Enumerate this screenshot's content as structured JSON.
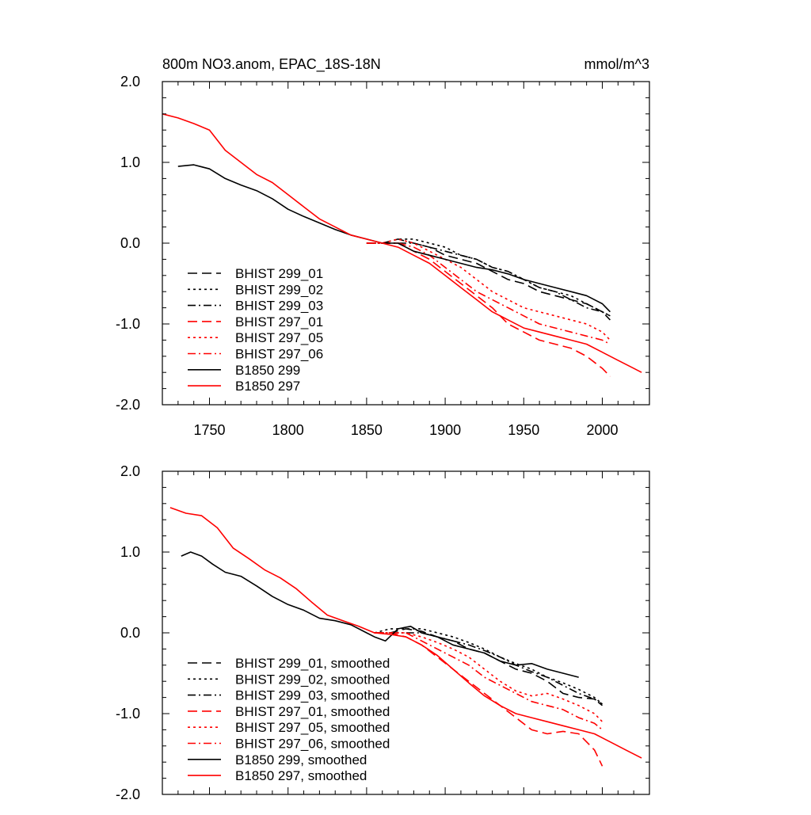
{
  "chart_data": [
    {
      "type": "line",
      "title": "800m NO3.anom, EPAC_18S-18N",
      "units": "mmol/m^3",
      "xlim": [
        1720,
        2030
      ],
      "ylim": [
        -2.0,
        2.0
      ],
      "x_ticks": [
        1750,
        1800,
        1850,
        1900,
        1950,
        2000
      ],
      "y_ticks": [
        "2.0",
        "1.0",
        "0.0",
        "-1.0",
        "-2.0"
      ],
      "show_x_labels": true,
      "grid": false,
      "legend_position": "bottom-left",
      "series": [
        {
          "name": "BHIST 299_01",
          "color": "#000000",
          "dash": "dash",
          "x": [
            1850,
            1860,
            1870,
            1880,
            1890,
            1900,
            1910,
            1920,
            1930,
            1940,
            1950,
            1960,
            1970,
            1980,
            1990,
            2000,
            2005
          ],
          "y": [
            0.0,
            0.0,
            0.05,
            0.0,
            -0.05,
            -0.15,
            -0.2,
            -0.25,
            -0.35,
            -0.45,
            -0.5,
            -0.6,
            -0.65,
            -0.7,
            -0.75,
            -0.85,
            -0.9
          ]
        },
        {
          "name": "BHIST 299_02",
          "color": "#000000",
          "dash": "dot",
          "x": [
            1850,
            1860,
            1870,
            1880,
            1890,
            1900,
            1910,
            1920,
            1930,
            1940,
            1950,
            1960,
            1970,
            1980,
            1990,
            2000,
            2005
          ],
          "y": [
            0.0,
            0.0,
            0.05,
            0.05,
            0.0,
            -0.05,
            -0.15,
            -0.2,
            -0.3,
            -0.35,
            -0.45,
            -0.55,
            -0.6,
            -0.65,
            -0.75,
            -0.85,
            -0.9
          ]
        },
        {
          "name": "BHIST 299_03",
          "color": "#000000",
          "dash": "dashdot",
          "x": [
            1850,
            1860,
            1870,
            1880,
            1890,
            1900,
            1910,
            1920,
            1930,
            1940,
            1950,
            1960,
            1970,
            1980,
            1990,
            2000,
            2005
          ],
          "y": [
            0.0,
            0.0,
            0.0,
            0.0,
            -0.05,
            -0.1,
            -0.15,
            -0.2,
            -0.3,
            -0.35,
            -0.45,
            -0.55,
            -0.6,
            -0.7,
            -0.8,
            -0.85,
            -0.95
          ]
        },
        {
          "name": "BHIST 297_01",
          "color": "#ff0000",
          "dash": "dash",
          "x": [
            1850,
            1860,
            1870,
            1880,
            1890,
            1900,
            1910,
            1920,
            1930,
            1940,
            1950,
            1960,
            1970,
            1980,
            1990,
            2000,
            2005
          ],
          "y": [
            0.0,
            0.0,
            0.0,
            -0.1,
            -0.2,
            -0.35,
            -0.5,
            -0.65,
            -0.8,
            -1.0,
            -1.1,
            -1.2,
            -1.25,
            -1.3,
            -1.4,
            -1.55,
            -1.65
          ]
        },
        {
          "name": "BHIST 297_05",
          "color": "#ff0000",
          "dash": "dot",
          "x": [
            1850,
            1860,
            1870,
            1880,
            1890,
            1900,
            1910,
            1920,
            1930,
            1940,
            1950,
            1960,
            1970,
            1980,
            1990,
            2000,
            2005
          ],
          "y": [
            0.0,
            0.0,
            0.05,
            0.0,
            -0.1,
            -0.2,
            -0.3,
            -0.45,
            -0.6,
            -0.7,
            -0.8,
            -0.85,
            -0.9,
            -0.95,
            -1.0,
            -1.1,
            -1.2
          ]
        },
        {
          "name": "BHIST 297_06",
          "color": "#ff0000",
          "dash": "dashdot",
          "x": [
            1850,
            1860,
            1870,
            1880,
            1890,
            1900,
            1910,
            1920,
            1930,
            1940,
            1950,
            1960,
            1970,
            1980,
            1990,
            2000,
            2005
          ],
          "y": [
            0.0,
            0.0,
            0.0,
            -0.05,
            -0.15,
            -0.3,
            -0.45,
            -0.6,
            -0.7,
            -0.8,
            -0.9,
            -1.0,
            -1.05,
            -1.1,
            -1.15,
            -1.2,
            -1.25
          ]
        },
        {
          "name": "B1850 299",
          "color": "#000000",
          "dash": "solid",
          "x": [
            1730,
            1740,
            1750,
            1760,
            1770,
            1780,
            1790,
            1800,
            1810,
            1820,
            1830,
            1840,
            1850,
            1860,
            1870,
            1880,
            1890,
            1900,
            1910,
            1920,
            1930,
            1940,
            1950,
            1960,
            1970,
            1980,
            1990,
            2000,
            2005
          ],
          "y": [
            0.95,
            0.97,
            0.92,
            0.8,
            0.72,
            0.65,
            0.55,
            0.42,
            0.33,
            0.25,
            0.17,
            0.1,
            0.05,
            0.0,
            0.0,
            -0.1,
            -0.15,
            -0.2,
            -0.25,
            -0.3,
            -0.33,
            -0.38,
            -0.45,
            -0.5,
            -0.55,
            -0.6,
            -0.65,
            -0.75,
            -0.85
          ]
        },
        {
          "name": "B1850 297",
          "color": "#ff0000",
          "dash": "solid",
          "x": [
            1720,
            1730,
            1740,
            1750,
            1760,
            1770,
            1780,
            1790,
            1800,
            1810,
            1820,
            1830,
            1840,
            1850,
            1860,
            1870,
            1880,
            1890,
            1900,
            1910,
            1920,
            1930,
            1940,
            1950,
            1960,
            1970,
            1980,
            1990,
            2000,
            2010,
            2020,
            2025
          ],
          "y": [
            1.6,
            1.55,
            1.48,
            1.4,
            1.15,
            1.0,
            0.85,
            0.75,
            0.6,
            0.45,
            0.3,
            0.2,
            0.1,
            0.05,
            0.0,
            -0.05,
            -0.15,
            -0.25,
            -0.4,
            -0.55,
            -0.7,
            -0.85,
            -0.95,
            -1.05,
            -1.1,
            -1.15,
            -1.2,
            -1.25,
            -1.35,
            -1.45,
            -1.55,
            -1.6
          ]
        }
      ]
    },
    {
      "type": "line",
      "xlim": [
        1720,
        2030
      ],
      "ylim": [
        -2.0,
        2.0
      ],
      "x_ticks": [
        1750,
        1800,
        1850,
        1900,
        1950,
        2000
      ],
      "y_ticks": [
        "2.0",
        "1.0",
        "0.0",
        "-1.0",
        "-2.0"
      ],
      "show_x_labels": false,
      "grid": false,
      "legend_position": "bottom-left",
      "series": [
        {
          "name": "BHIST 299_01, smoothed",
          "color": "#000000",
          "dash": "dash",
          "x": [
            1855,
            1865,
            1875,
            1885,
            1895,
            1905,
            1915,
            1925,
            1935,
            1945,
            1955,
            1965,
            1975,
            1985,
            1995,
            2000
          ],
          "y": [
            0.0,
            0.0,
            0.05,
            0.02,
            -0.05,
            -0.1,
            -0.2,
            -0.25,
            -0.35,
            -0.45,
            -0.5,
            -0.6,
            -0.75,
            -0.8,
            -0.82,
            -0.88
          ]
        },
        {
          "name": "BHIST 299_02, smoothed",
          "color": "#000000",
          "dash": "dot",
          "x": [
            1855,
            1865,
            1875,
            1885,
            1895,
            1905,
            1915,
            1925,
            1935,
            1945,
            1955,
            1965,
            1975,
            1985,
            1995,
            2000
          ],
          "y": [
            0.0,
            0.05,
            0.05,
            0.05,
            0.0,
            -0.05,
            -0.12,
            -0.2,
            -0.3,
            -0.38,
            -0.45,
            -0.55,
            -0.62,
            -0.7,
            -0.8,
            -0.88
          ]
        },
        {
          "name": "BHIST 299_03, smoothed",
          "color": "#000000",
          "dash": "dashdot",
          "x": [
            1855,
            1865,
            1875,
            1885,
            1895,
            1905,
            1915,
            1925,
            1935,
            1945,
            1955,
            1965,
            1975,
            1985,
            1995,
            2000
          ],
          "y": [
            0.0,
            0.0,
            0.0,
            0.0,
            -0.05,
            -0.1,
            -0.15,
            -0.22,
            -0.3,
            -0.4,
            -0.48,
            -0.55,
            -0.65,
            -0.75,
            -0.82,
            -0.9
          ]
        },
        {
          "name": "BHIST 297_01, smoothed",
          "color": "#ff0000",
          "dash": "dash",
          "x": [
            1855,
            1865,
            1875,
            1885,
            1895,
            1905,
            1915,
            1925,
            1935,
            1945,
            1955,
            1965,
            1975,
            1985,
            1995,
            2000
          ],
          "y": [
            0.0,
            0.0,
            -0.05,
            -0.15,
            -0.3,
            -0.45,
            -0.6,
            -0.75,
            -0.9,
            -1.05,
            -1.2,
            -1.25,
            -1.22,
            -1.25,
            -1.45,
            -1.65
          ]
        },
        {
          "name": "BHIST 297_05, smoothed",
          "color": "#ff0000",
          "dash": "dot",
          "x": [
            1855,
            1865,
            1875,
            1885,
            1895,
            1905,
            1915,
            1925,
            1935,
            1945,
            1955,
            1965,
            1975,
            1985,
            1995,
            2000
          ],
          "y": [
            0.0,
            0.0,
            0.0,
            -0.05,
            -0.12,
            -0.2,
            -0.3,
            -0.45,
            -0.6,
            -0.72,
            -0.78,
            -0.75,
            -0.82,
            -0.9,
            -1.0,
            -1.1
          ]
        },
        {
          "name": "BHIST 297_06, smoothed",
          "color": "#ff0000",
          "dash": "dashdot",
          "x": [
            1855,
            1865,
            1875,
            1885,
            1895,
            1905,
            1915,
            1925,
            1935,
            1945,
            1955,
            1965,
            1975,
            1985,
            1995,
            2000
          ],
          "y": [
            0.0,
            0.0,
            0.0,
            -0.1,
            -0.2,
            -0.3,
            -0.4,
            -0.55,
            -0.65,
            -0.75,
            -0.85,
            -0.9,
            -0.95,
            -1.05,
            -1.12,
            -1.2
          ]
        },
        {
          "name": "B1850 299, smoothed",
          "color": "#000000",
          "dash": "solid",
          "x": [
            1732,
            1738,
            1745,
            1752,
            1760,
            1770,
            1780,
            1790,
            1800,
            1810,
            1820,
            1830,
            1840,
            1850,
            1855,
            1862,
            1870,
            1878,
            1885,
            1895,
            1905,
            1915,
            1925,
            1935,
            1945,
            1955,
            1965,
            1975,
            1985
          ],
          "y": [
            0.95,
            1.0,
            0.95,
            0.85,
            0.75,
            0.7,
            0.58,
            0.45,
            0.35,
            0.28,
            0.18,
            0.15,
            0.1,
            0.0,
            -0.05,
            -0.1,
            0.05,
            0.08,
            0.0,
            -0.05,
            -0.15,
            -0.2,
            -0.25,
            -0.35,
            -0.4,
            -0.38,
            -0.45,
            -0.5,
            -0.55
          ]
        },
        {
          "name": "B1850 297, smoothed",
          "color": "#ff0000",
          "dash": "solid",
          "x": [
            1725,
            1735,
            1745,
            1755,
            1765,
            1775,
            1785,
            1795,
            1805,
            1815,
            1825,
            1835,
            1845,
            1855,
            1865,
            1875,
            1885,
            1895,
            1905,
            1915,
            1925,
            1935,
            1945,
            1955,
            1965,
            1975,
            1985,
            1995,
            2005,
            2015,
            2025
          ],
          "y": [
            1.55,
            1.48,
            1.45,
            1.3,
            1.05,
            0.92,
            0.78,
            0.68,
            0.55,
            0.38,
            0.22,
            0.15,
            0.08,
            0.0,
            -0.02,
            -0.05,
            -0.15,
            -0.28,
            -0.45,
            -0.62,
            -0.78,
            -0.9,
            -1.0,
            -1.05,
            -1.1,
            -1.15,
            -1.2,
            -1.25,
            -1.35,
            -1.45,
            -1.55
          ]
        }
      ]
    }
  ]
}
